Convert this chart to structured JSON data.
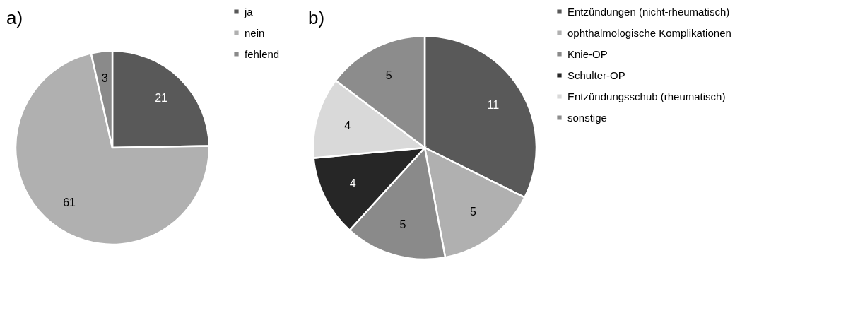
{
  "chart_data": [
    {
      "type": "pie",
      "title": "a)",
      "categories": [
        "ja",
        "nein",
        "fehlend"
      ],
      "values": [
        21,
        61,
        3
      ],
      "colors": [
        "#595959",
        "#b0b0b0",
        "#8a8a8a"
      ],
      "data_labels": true,
      "legend": "right"
    },
    {
      "type": "pie",
      "title": "b)",
      "categories": [
        "Entzündungen (nicht-rheumatisch)",
        "ophthalmologische Komplikationen",
        "Knie-OP",
        "Schulter-OP",
        "Entzündungsschub (rheumatisch)",
        "sonstige"
      ],
      "values": [
        11,
        5,
        5,
        4,
        4,
        5
      ],
      "colors": [
        "#595959",
        "#b0b0b0",
        "#8a8a8a",
        "#262626",
        "#d9d9d9",
        "#8c8c8c"
      ],
      "data_labels": true,
      "legend": "right"
    }
  ]
}
